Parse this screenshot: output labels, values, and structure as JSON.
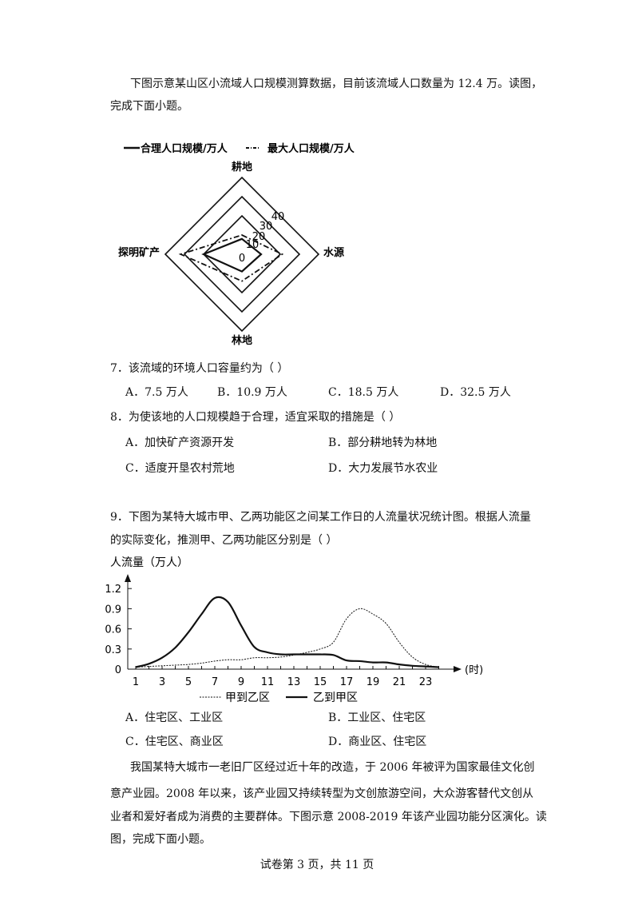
{
  "intro1": {
    "line1": "下图示意某山区小流域人口规模测算数据，目前该流域人口数量为 12.4 万。读图，",
    "line2": "完成下面小题。"
  },
  "q7": {
    "stem": "7．该流域的环境人口容量约为（   ）",
    "options": [
      "A．7.5 万人",
      "B．10.9 万人",
      "C．18.5 万人",
      "D．32.5 万人"
    ]
  },
  "q8": {
    "stem": "8．为使该地的人口规模趋于合理，适宜采取的措施是（   ）",
    "options": [
      "A．加快矿产资源开发",
      "B．部分耕地转为林地",
      "C．适度开垦农村荒地",
      "D．大力发展节水农业"
    ]
  },
  "q9": {
    "line1": "9．下图为某特大城市甲、乙两功能区之间某工作日的人流量状况统计图。根据人流量",
    "line2": "的实际变化，推测甲、乙两功能区分别是（   ）",
    "options": [
      "A．住宅区、工业区",
      "B．工业区、住宅区",
      "C．住宅区、商业区",
      "D．商业区、住宅区"
    ]
  },
  "intro2": {
    "lines": [
      "我国某特大城市一老旧厂区经过近十年的改造，于 2006 年被评为国家最佳文化创",
      "意产业园。2008 年以来，该产业园又持续转型为文创旅游空间，大众游客替代文创从",
      "业者和爱好者成为消费的主要群体。下图示意 2008-2019 年该产业园功能分区演化。读",
      "图，完成下面小题。"
    ]
  },
  "footer": "试卷第 3 页，共 11 页",
  "chart_data": [
    {
      "type": "radar",
      "axes": [
        "耕地",
        "水源",
        "林地",
        "探明矿产"
      ],
      "ticks": [
        "0",
        "10",
        "20",
        "30",
        "40"
      ],
      "rings": [
        20,
        30,
        40
      ],
      "series": [
        {
          "name": "合理人口规模/万人",
          "style": "solid",
          "values": [
            8,
            10,
            9,
            20
          ]
        },
        {
          "name": "最大人口规模/万人",
          "style": "dash-dot",
          "values": [
            10,
            21,
            14,
            32
          ]
        }
      ],
      "legend_position": "top"
    },
    {
      "type": "line",
      "ylabel": "人流量（万人）",
      "xlabel": "(时)",
      "xticks": [
        "1",
        "3",
        "5",
        "7",
        "9",
        "11",
        "13",
        "15",
        "17",
        "19",
        "21",
        "23"
      ],
      "yticks": [
        "0",
        "0.3",
        "0.6",
        "0.9",
        "1.2"
      ],
      "ylim": [
        0,
        1.2
      ],
      "x": [
        1,
        2,
        3,
        4,
        5,
        6,
        7,
        8,
        9,
        10,
        11,
        12,
        13,
        14,
        15,
        16,
        17,
        18,
        19,
        20,
        21,
        22,
        23,
        24
      ],
      "series": [
        {
          "name": "甲到乙区",
          "style": "dotted",
          "values": [
            0.03,
            0.04,
            0.05,
            0.06,
            0.07,
            0.09,
            0.12,
            0.14,
            0.14,
            0.17,
            0.17,
            0.18,
            0.21,
            0.25,
            0.3,
            0.4,
            0.75,
            0.9,
            0.82,
            0.68,
            0.4,
            0.18,
            0.07,
            0.03
          ]
        },
        {
          "name": "乙到甲区",
          "style": "solid",
          "values": [
            0.03,
            0.08,
            0.17,
            0.32,
            0.55,
            0.82,
            1.06,
            1.0,
            0.65,
            0.33,
            0.25,
            0.22,
            0.22,
            0.22,
            0.22,
            0.21,
            0.13,
            0.12,
            0.1,
            0.1,
            0.07,
            0.05,
            0.04,
            0.03
          ]
        }
      ],
      "legend_position": "bottom"
    }
  ]
}
